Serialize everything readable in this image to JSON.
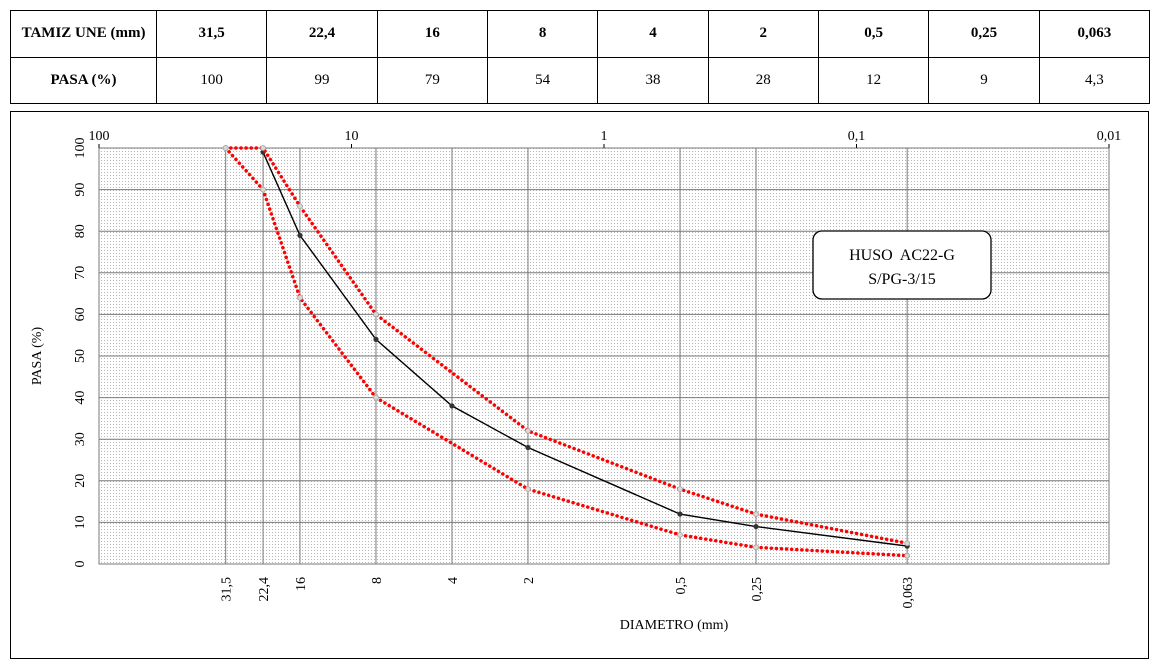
{
  "table": {
    "row1": [
      "TAMIZ UNE (mm)",
      "31,5",
      "22,4",
      "16",
      "8",
      "4",
      "2",
      "0,5",
      "0,25",
      "0,063"
    ],
    "row2": [
      "PASA (%)",
      "100",
      "99",
      "79",
      "54",
      "38",
      "28",
      "12",
      "9",
      "4,3"
    ]
  },
  "chart_data": {
    "type": "line",
    "xscale": "log-reversed",
    "xlim": [
      100,
      0.01
    ],
    "ylim": [
      0,
      100
    ],
    "grid": true,
    "ylabel": "PASA (%)",
    "xlabel": "DIAMETRO (mm)",
    "top_ticks": [
      {
        "v": 100,
        "label": "100"
      },
      {
        "v": 10,
        "label": "10"
      },
      {
        "v": 1,
        "label": "1"
      },
      {
        "v": 0.1,
        "label": "0,1"
      },
      {
        "v": 0.01,
        "label": "0,01"
      }
    ],
    "y_ticks": [
      0,
      10,
      20,
      30,
      40,
      50,
      60,
      70,
      80,
      90,
      100
    ],
    "x_categories": [
      {
        "v": 31.5,
        "label": "31,5"
      },
      {
        "v": 22.4,
        "label": "22,4"
      },
      {
        "v": 16,
        "label": "16"
      },
      {
        "v": 8,
        "label": "8"
      },
      {
        "v": 4,
        "label": "4"
      },
      {
        "v": 2,
        "label": "2"
      },
      {
        "v": 0.5,
        "label": "0,5"
      },
      {
        "v": 0.25,
        "label": "0,25"
      },
      {
        "v": 0.063,
        "label": "0,063"
      }
    ],
    "series": [
      {
        "role": "measured",
        "color": "#000000",
        "x": [
          22.4,
          16,
          8,
          4,
          2,
          0.5,
          0.25,
          0.063
        ],
        "y": [
          99,
          79,
          54,
          38,
          28,
          12,
          9,
          4.3
        ]
      },
      {
        "role": "upper-limit",
        "color": "#ff0000",
        "x": [
          31.5,
          22.4,
          16,
          8,
          2,
          0.5,
          0.25,
          0.063
        ],
        "y": [
          100,
          100,
          86,
          60,
          32,
          18,
          12,
          5
        ]
      },
      {
        "role": "lower-limit",
        "color": "#ff0000",
        "x": [
          31.5,
          22.4,
          16,
          8,
          2,
          0.5,
          0.25,
          0.063
        ],
        "y": [
          100,
          90,
          64,
          40,
          18,
          7,
          4,
          2
        ]
      }
    ],
    "annotation": [
      "HUSO  AC22-G",
      "S/PG-3/15"
    ]
  }
}
